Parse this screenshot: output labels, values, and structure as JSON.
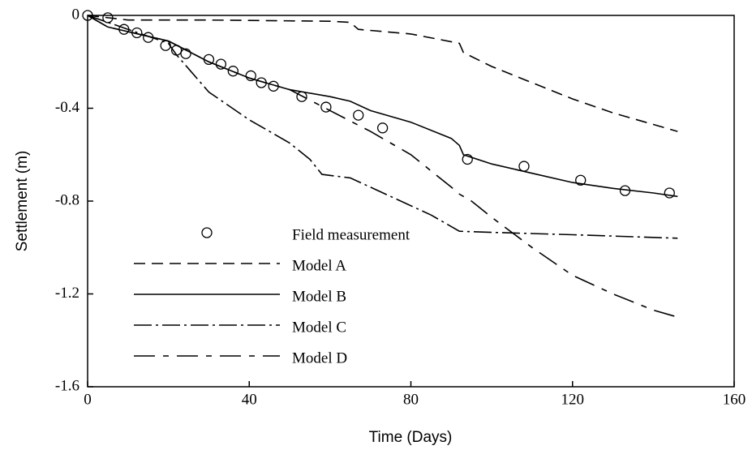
{
  "chart_data": {
    "type": "line",
    "xlabel": "Time (Days)",
    "ylabel": "Settlement (m)",
    "xlim": [
      0,
      160
    ],
    "xticks": [
      0,
      40,
      80,
      120,
      160
    ],
    "ylim": [
      -1.6,
      0
    ],
    "yticks": [
      -1.6,
      -1.2,
      -0.8,
      -0.4,
      0
    ],
    "series": [
      {
        "name": "Field measurement",
        "style": "marker",
        "color": "#000000",
        "x": [
          0,
          5,
          9,
          12.2,
          15,
          19.3,
          22,
          24.3,
          30,
          33,
          36,
          40.4,
          43,
          46,
          53,
          59,
          67,
          73,
          94,
          108,
          122,
          133,
          144
        ],
        "values": [
          0,
          -0.01,
          -0.06,
          -0.075,
          -0.095,
          -0.13,
          -0.15,
          -0.165,
          -0.19,
          -0.21,
          -0.24,
          -0.26,
          -0.29,
          -0.305,
          -0.35,
          -0.395,
          -0.43,
          -0.485,
          -0.62,
          -0.65,
          -0.71,
          -0.755,
          -0.765
        ]
      },
      {
        "name": "Model A",
        "style": "dashed",
        "color": "#000000",
        "x": [
          0,
          10,
          30,
          60,
          65,
          67,
          80,
          92,
          93,
          100,
          110,
          120,
          130,
          146
        ],
        "values": [
          0,
          -0.02,
          -0.02,
          -0.025,
          -0.03,
          -0.06,
          -0.08,
          -0.12,
          -0.16,
          -0.22,
          -0.29,
          -0.36,
          -0.42,
          -0.5
        ]
      },
      {
        "name": "Model B",
        "style": "solid",
        "color": "#000000",
        "x": [
          0,
          5,
          15,
          20,
          30,
          40,
          50,
          60,
          65,
          70,
          80,
          90,
          92,
          93,
          100,
          110,
          120,
          130,
          140,
          146
        ],
        "values": [
          0,
          -0.05,
          -0.09,
          -0.11,
          -0.2,
          -0.27,
          -0.32,
          -0.35,
          -0.37,
          -0.41,
          -0.46,
          -0.53,
          -0.56,
          -0.6,
          -0.64,
          -0.68,
          -0.72,
          -0.745,
          -0.765,
          -0.78
        ]
      },
      {
        "name": "Model C",
        "style": "dashdot",
        "color": "#000000",
        "x": [
          0,
          20,
          22,
          25,
          30,
          40,
          50,
          55,
          58,
          65,
          75,
          85,
          92,
          100,
          120,
          146
        ],
        "values": [
          0,
          -0.12,
          -0.17,
          -0.23,
          -0.33,
          -0.45,
          -0.55,
          -0.62,
          -0.685,
          -0.7,
          -0.78,
          -0.86,
          -0.93,
          -0.935,
          -0.945,
          -0.96
        ]
      },
      {
        "name": "Model D",
        "style": "longshort",
        "color": "#000000",
        "x": [
          0,
          5,
          15,
          20,
          30,
          40,
          50,
          60,
          70,
          80,
          85,
          90,
          92,
          95,
          100,
          110,
          120,
          130,
          140,
          146
        ],
        "values": [
          0,
          -0.05,
          -0.09,
          -0.11,
          -0.2,
          -0.27,
          -0.32,
          -0.41,
          -0.5,
          -0.6,
          -0.67,
          -0.74,
          -0.77,
          -0.8,
          -0.87,
          -1.0,
          -1.12,
          -1.2,
          -1.27,
          -1.3
        ]
      }
    ]
  }
}
